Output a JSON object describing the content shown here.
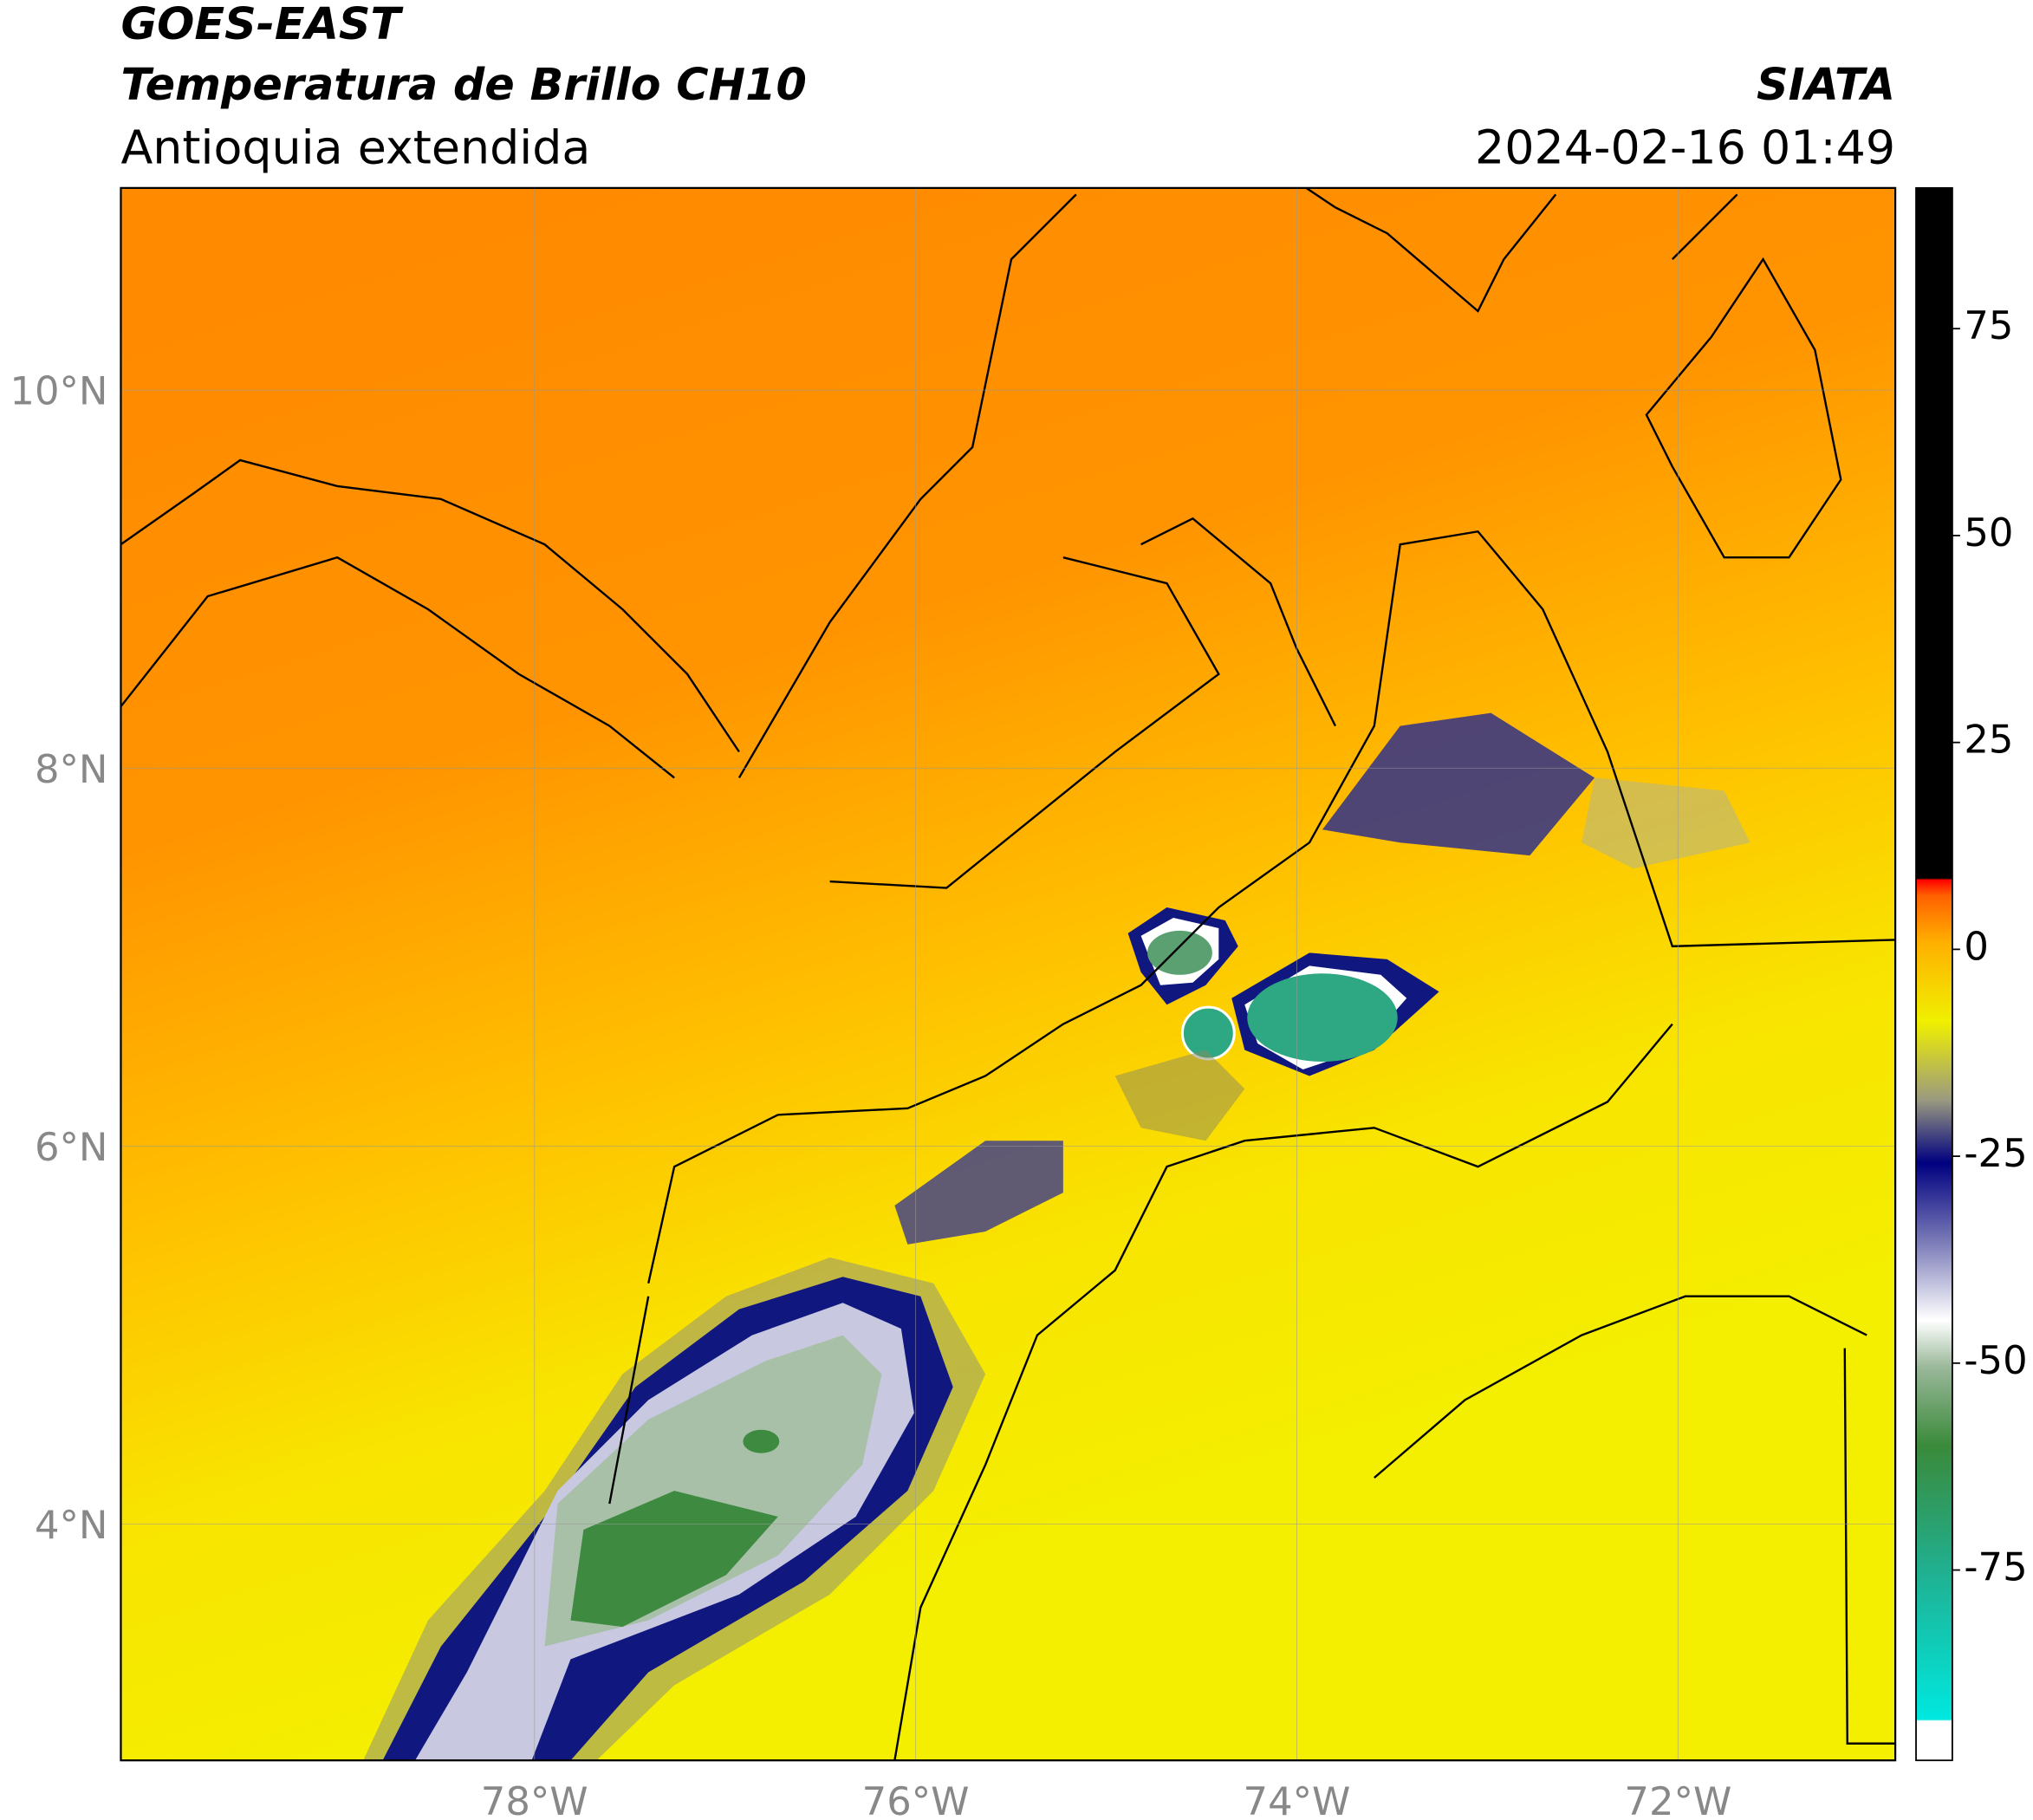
{
  "header": {
    "title": "GOES-EAST",
    "subtitle": "Temperatura de Brillo CH10",
    "region": "Antioquia extendida",
    "source": "SIATA",
    "datetime": "2024-02-16 01:49"
  },
  "map": {
    "lon_range": [
      -80.17,
      -70.86
    ],
    "lat_range": [
      2.75,
      11.07
    ],
    "lon_ticks": [
      {
        "value": -78,
        "label": "78°W"
      },
      {
        "value": -76,
        "label": "76°W"
      },
      {
        "value": -74,
        "label": "74°W"
      },
      {
        "value": -72,
        "label": "72°W"
      }
    ],
    "lat_ticks": [
      {
        "value": 4,
        "label": "4°N"
      },
      {
        "value": 6,
        "label": "6°N"
      },
      {
        "value": 8,
        "label": "8°N"
      },
      {
        "value": 10,
        "label": "10°N"
      }
    ]
  },
  "colorbar": {
    "range": [
      -98,
      92
    ],
    "ticks": [
      75,
      50,
      25,
      0,
      -25,
      -50,
      -75
    ]
  }
}
